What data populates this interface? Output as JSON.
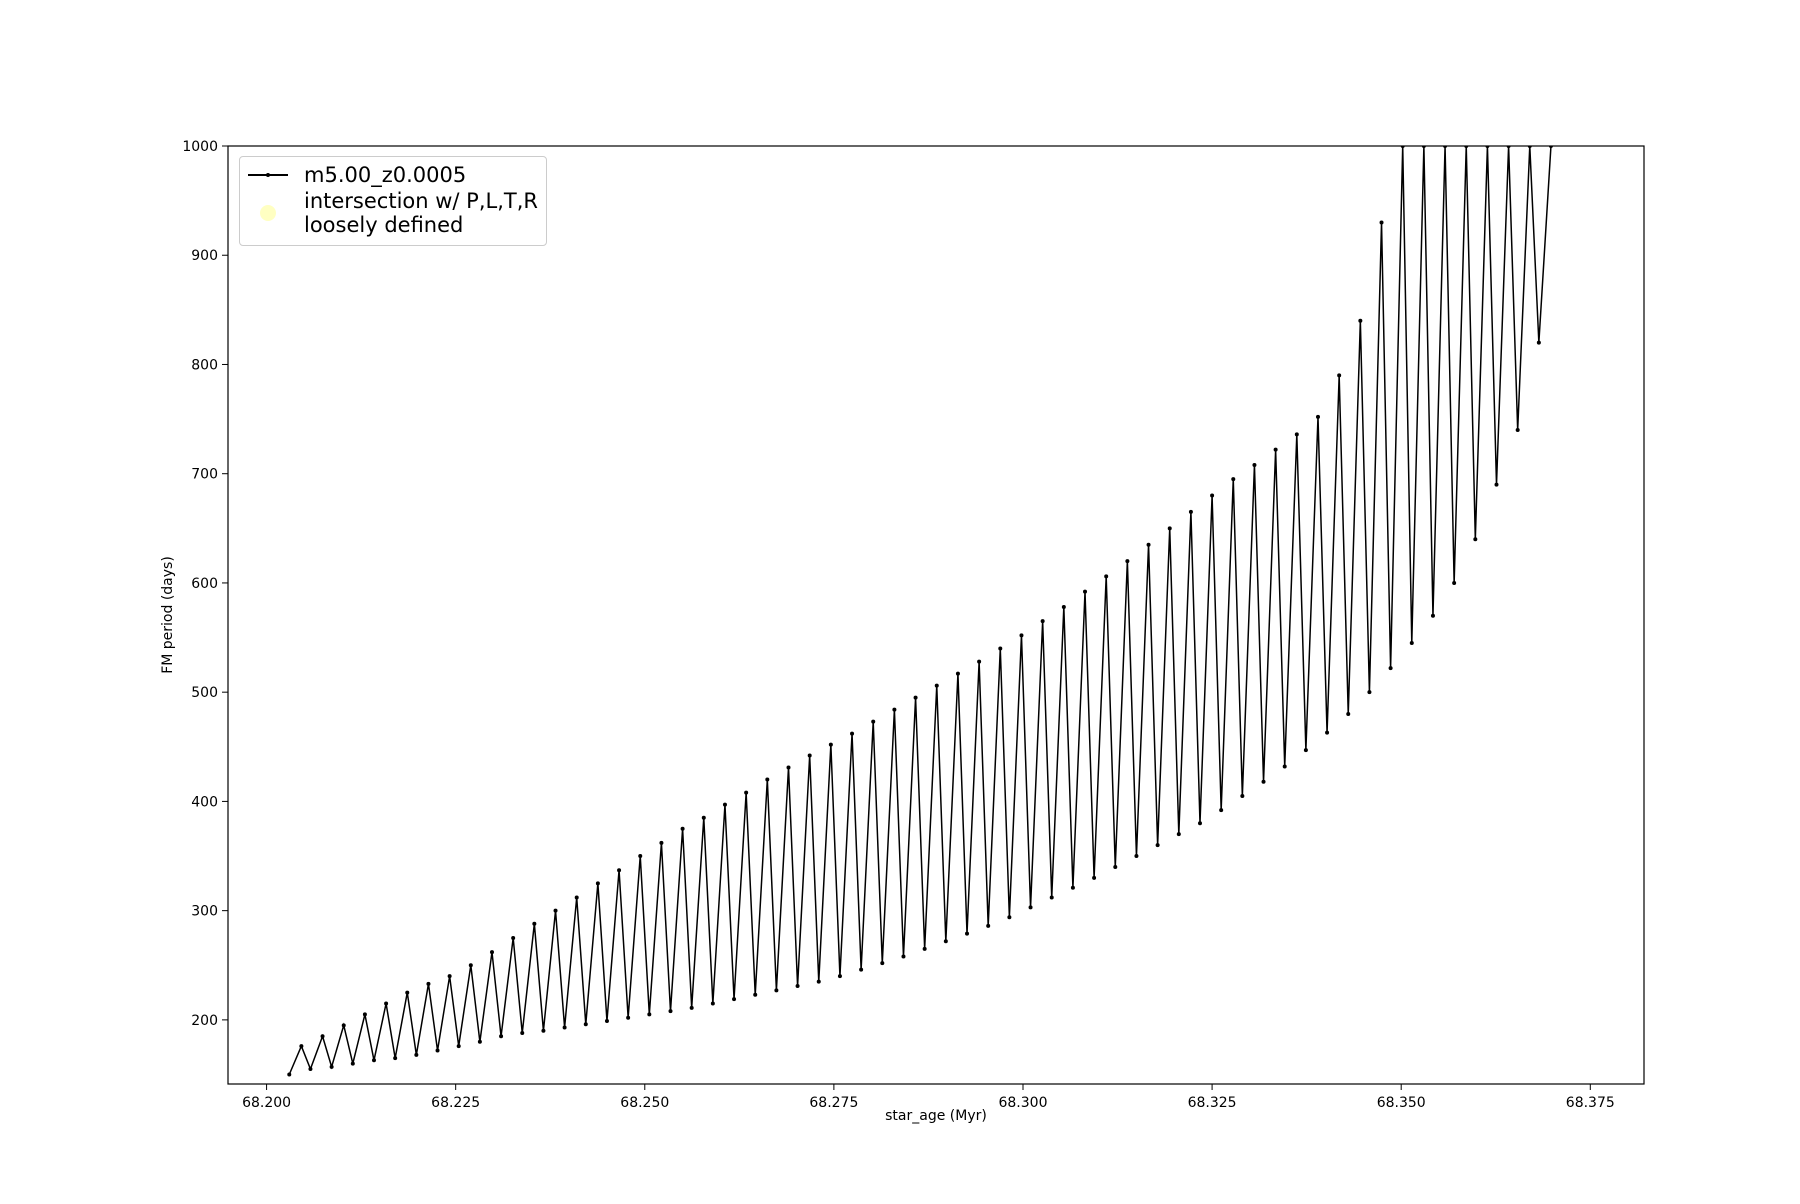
{
  "chart_data": {
    "type": "line",
    "xlabel": "star_age (Myr)",
    "ylabel": "FM period (days)",
    "xlim": [
      68.1949,
      68.3821
    ],
    "ylim": [
      141.3,
      1000
    ],
    "xticks": [
      {
        "value": 68.2,
        "label": "68.200"
      },
      {
        "value": 68.225,
        "label": "68.225"
      },
      {
        "value": 68.25,
        "label": "68.250"
      },
      {
        "value": 68.275,
        "label": "68.275"
      },
      {
        "value": 68.3,
        "label": "68.300"
      },
      {
        "value": 68.325,
        "label": "68.325"
      },
      {
        "value": 68.35,
        "label": "68.350"
      },
      {
        "value": 68.375,
        "label": "68.375"
      }
    ],
    "yticks": [
      200,
      300,
      400,
      500,
      600,
      700,
      800,
      900,
      1000
    ],
    "legend": "upper left",
    "series": [
      {
        "name": "m5.00_z0.0005",
        "color": "#000000",
        "marker": true,
        "x": [
          68.203,
          68.2046,
          68.2058,
          68.2074,
          68.2086,
          68.2102,
          68.2114,
          68.213,
          68.2142,
          68.2158,
          68.217,
          68.2186,
          68.2198,
          68.2214,
          68.2226,
          68.2242,
          68.2254,
          68.227,
          68.2282,
          68.2298,
          68.231,
          68.2326,
          68.2338,
          68.2354,
          68.2366,
          68.2382,
          68.2394,
          68.241,
          68.2422,
          68.2438,
          68.245,
          68.2466,
          68.2478,
          68.2494,
          68.2506,
          68.2522,
          68.2534,
          68.255,
          68.2562,
          68.2578,
          68.259,
          68.2606,
          68.2618,
          68.2634,
          68.2646,
          68.2662,
          68.2674,
          68.269,
          68.2702,
          68.2718,
          68.273,
          68.2746,
          68.2758,
          68.2774,
          68.2786,
          68.2802,
          68.2814,
          68.283,
          68.2842,
          68.2858,
          68.287,
          68.2886,
          68.2898,
          68.2914,
          68.2926,
          68.2942,
          68.2954,
          68.297,
          68.2982,
          68.2998,
          68.301,
          68.3026,
          68.3038,
          68.3054,
          68.3066,
          68.3082,
          68.3094,
          68.311,
          68.3122,
          68.3138,
          68.315,
          68.3166,
          68.3178,
          68.3194,
          68.3206,
          68.3222,
          68.3234,
          68.325,
          68.3262,
          68.3278,
          68.329,
          68.3306,
          68.3318,
          68.3334,
          68.3346,
          68.3362,
          68.3374,
          68.339,
          68.3402,
          68.3418,
          68.343,
          68.3446,
          68.3458,
          68.3474,
          68.3486,
          68.3502,
          68.3514,
          68.353,
          68.3542,
          68.3558,
          68.357,
          68.3586,
          68.3598,
          68.3614,
          68.3626,
          68.3642,
          68.3654,
          68.367,
          68.3682,
          68.3698
        ],
        "values": [
          150,
          176,
          155,
          185,
          157,
          195,
          160,
          205,
          163,
          215,
          165,
          225,
          168,
          233,
          172,
          240,
          176,
          250,
          180,
          262,
          185,
          275,
          188,
          288,
          190,
          300,
          193,
          312,
          196,
          325,
          199,
          337,
          202,
          350,
          205,
          362,
          208,
          375,
          211,
          385,
          215,
          397,
          219,
          408,
          223,
          420,
          227,
          431,
          231,
          442,
          235,
          452,
          240,
          462,
          246,
          473,
          252,
          484,
          258,
          495,
          265,
          506,
          272,
          517,
          279,
          528,
          286,
          540,
          294,
          552,
          303,
          565,
          312,
          578,
          321,
          592,
          330,
          606,
          340,
          620,
          350,
          635,
          360,
          650,
          370,
          665,
          380,
          680,
          392,
          695,
          405,
          708,
          418,
          722,
          432,
          736,
          447,
          752,
          463,
          790,
          480,
          840,
          500,
          930,
          522,
          1000,
          545,
          1000,
          570,
          1000,
          600,
          1000,
          640,
          1000,
          690,
          1000,
          740,
          1000,
          820,
          1000
        ]
      },
      {
        "name": "intersection w/ P,L,T,R\nloosely defined",
        "color": "#ffffb3",
        "marker": true,
        "x": [],
        "values": []
      }
    ]
  }
}
